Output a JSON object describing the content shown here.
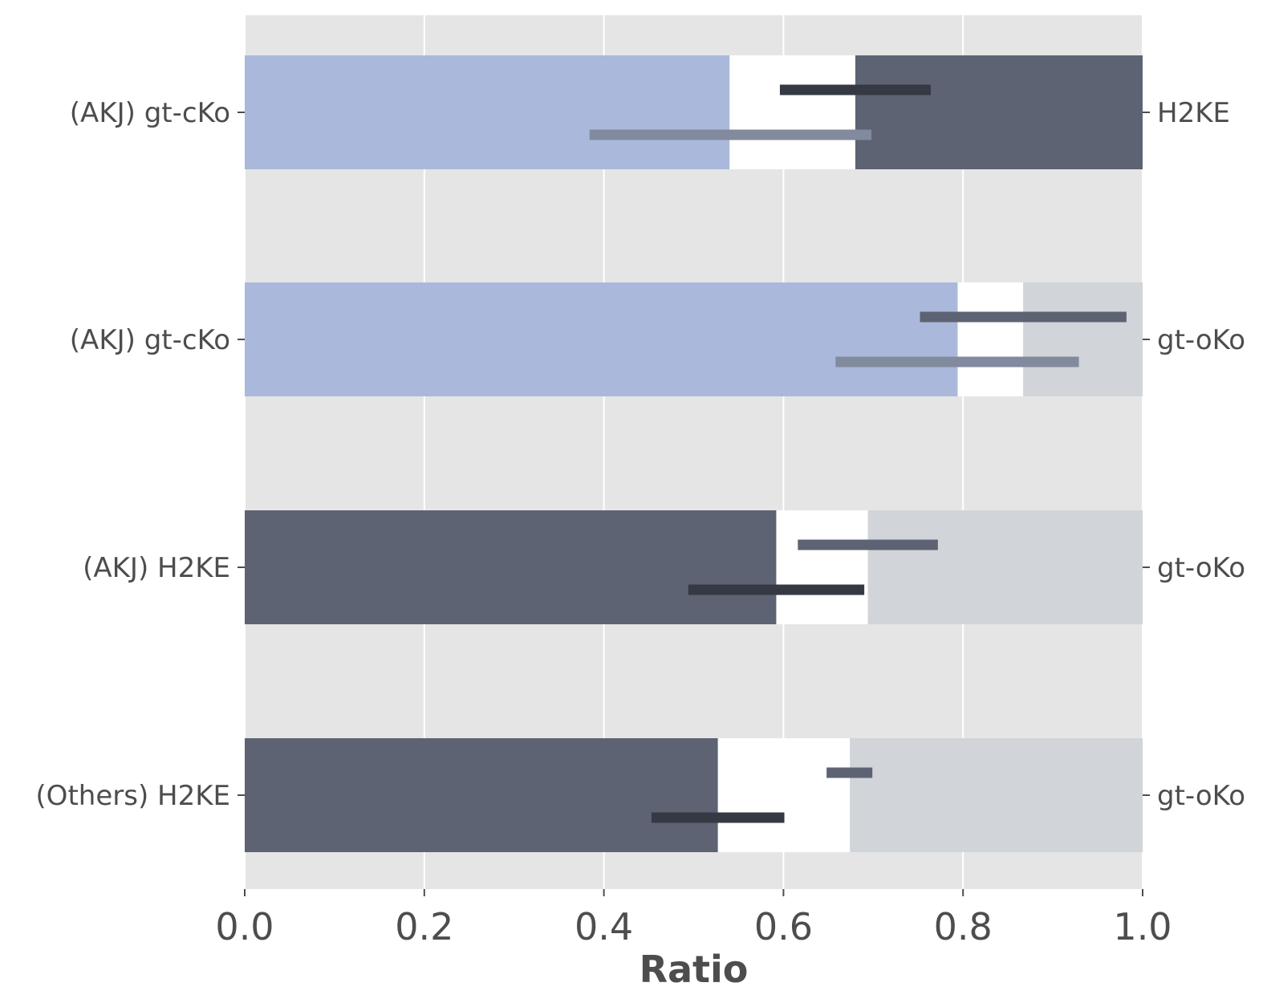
{
  "chart_data": {
    "type": "bar",
    "orientation": "horizontal",
    "stacked": true,
    "xlabel": "Ratio",
    "xlim": [
      0.0,
      1.0
    ],
    "xticks": [
      0.0,
      0.2,
      0.4,
      0.6,
      0.8,
      1.0
    ],
    "xtick_labels": [
      "0.0",
      "0.2",
      "0.4",
      "0.6",
      "0.8",
      "1.0"
    ],
    "grid": true,
    "background": "#e5e5e5",
    "rows": [
      {
        "left_label": "(AKJ) gt-cKo",
        "right_label": "H2KE",
        "segments": [
          {
            "start": 0.0,
            "end": 0.54,
            "color": "#aab9db"
          },
          {
            "start": 0.54,
            "end": 0.68,
            "color": "#ffffff"
          },
          {
            "start": 0.68,
            "end": 1.0,
            "color": "#5d6373"
          }
        ],
        "intervals": [
          {
            "start": 0.596,
            "end": 0.764,
            "position": "upper",
            "color": "#343943"
          },
          {
            "start": 0.384,
            "end": 0.698,
            "position": "lower",
            "color": "#828a9e"
          }
        ]
      },
      {
        "left_label": "(AKJ) gt-cKo",
        "right_label": "gt-oKo",
        "segments": [
          {
            "start": 0.0,
            "end": 0.794,
            "color": "#aab9db"
          },
          {
            "start": 0.794,
            "end": 0.867,
            "color": "#ffffff"
          },
          {
            "start": 0.867,
            "end": 1.0,
            "color": "#d1d4d9"
          }
        ],
        "intervals": [
          {
            "start": 0.752,
            "end": 0.982,
            "position": "upper",
            "color": "#5d6373"
          },
          {
            "start": 0.658,
            "end": 0.929,
            "position": "lower",
            "color": "#828a9e"
          }
        ]
      },
      {
        "left_label": "(AKJ) H2KE",
        "right_label": "gt-oKo",
        "segments": [
          {
            "start": 0.0,
            "end": 0.592,
            "color": "#5d6373"
          },
          {
            "start": 0.592,
            "end": 0.694,
            "color": "#ffffff"
          },
          {
            "start": 0.694,
            "end": 1.0,
            "color": "#d1d4d9"
          }
        ],
        "intervals": [
          {
            "start": 0.616,
            "end": 0.772,
            "position": "upper",
            "color": "#5d6373"
          },
          {
            "start": 0.494,
            "end": 0.69,
            "position": "lower",
            "color": "#343943"
          }
        ]
      },
      {
        "left_label": "(Others) H2KE",
        "right_label": "gt-oKo",
        "segments": [
          {
            "start": 0.0,
            "end": 0.527,
            "color": "#5d6373"
          },
          {
            "start": 0.527,
            "end": 0.674,
            "color": "#ffffff"
          },
          {
            "start": 0.674,
            "end": 1.0,
            "color": "#d1d4d9"
          }
        ],
        "intervals": [
          {
            "start": 0.648,
            "end": 0.699,
            "position": "upper",
            "color": "#5d6373"
          },
          {
            "start": 0.453,
            "end": 0.601,
            "position": "lower",
            "color": "#343943"
          }
        ]
      }
    ]
  }
}
